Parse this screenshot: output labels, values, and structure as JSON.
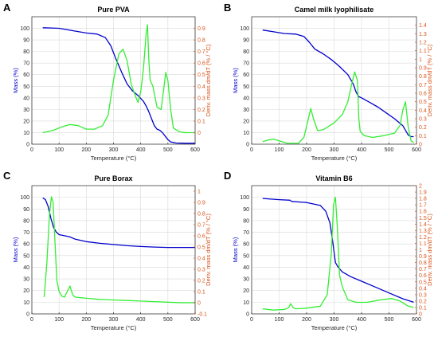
{
  "colors": {
    "mass": "#0000cc",
    "deriv": "#33ee33",
    "deriv_axis": "#D95319",
    "grid": "#d9d9d9"
  },
  "chart_data": [
    {
      "type": "line",
      "letter": "A",
      "title": "Pure PVA",
      "xlabel": "Temperature (°C)",
      "ylabel_left": "Mass (%)",
      "ylabel_right": "Deriv. mass dm/dT (% / °C)",
      "xlim": [
        0,
        600
      ],
      "xticks": [
        0,
        100,
        200,
        300,
        400,
        500,
        600
      ],
      "ylim_left": [
        0,
        110
      ],
      "yticks_left": [
        0,
        10,
        20,
        30,
        40,
        50,
        60,
        70,
        80,
        90,
        100
      ],
      "ylim_right": [
        -0.1,
        1.0
      ],
      "yticks_right": [
        0,
        0.1,
        0.2,
        0.3,
        0.4,
        0.5,
        0.6,
        0.7,
        0.8,
        0.9
      ],
      "grid": true,
      "series": [
        {
          "axis": "left",
          "color": "mass",
          "x": [
            40,
            100,
            150,
            200,
            240,
            270,
            290,
            310,
            330,
            350,
            370,
            390,
            410,
            420,
            430,
            440,
            450,
            460,
            470,
            480,
            490,
            500,
            510,
            530,
            560,
            600
          ],
          "y": [
            100.5,
            100,
            98,
            96,
            95,
            92,
            85,
            73,
            62,
            52,
            46,
            42,
            37,
            33,
            28,
            22,
            16,
            13,
            12,
            10,
            7,
            4,
            2,
            1,
            0.8,
            0.8
          ]
        },
        {
          "axis": "right",
          "color": "deriv",
          "x": [
            40,
            80,
            110,
            140,
            170,
            200,
            230,
            260,
            280,
            300,
            320,
            335,
            350,
            365,
            380,
            390,
            400,
            410,
            420,
            425,
            430,
            435,
            445,
            460,
            475,
            485,
            492,
            500,
            510,
            520,
            540,
            560,
            600
          ],
          "y": [
            0.0,
            0.02,
            0.05,
            0.07,
            0.06,
            0.03,
            0.03,
            0.06,
            0.15,
            0.45,
            0.68,
            0.72,
            0.62,
            0.42,
            0.32,
            0.26,
            0.35,
            0.55,
            0.85,
            0.93,
            0.62,
            0.45,
            0.4,
            0.22,
            0.2,
            0.38,
            0.52,
            0.45,
            0.2,
            0.04,
            0.01,
            0.0,
            0.0
          ]
        }
      ]
    },
    {
      "type": "line",
      "letter": "B",
      "title": "Camel milk lyophilisate",
      "xlabel": "Temperature (°C)",
      "ylabel_left": "Mass (%)",
      "ylabel_right": "Deriv. mass dm/dT (% / °C)",
      "xlim": [
        0,
        600
      ],
      "xticks": [
        0,
        100,
        200,
        300,
        400,
        500,
        600
      ],
      "ylim_left": [
        0,
        110
      ],
      "yticks_left": [
        0,
        10,
        20,
        30,
        40,
        50,
        60,
        70,
        80,
        90,
        100
      ],
      "ylim_right": [
        0,
        1.5
      ],
      "yticks_right": [
        0,
        0.1,
        0.2,
        0.3,
        0.4,
        0.5,
        0.6,
        0.7,
        0.8,
        0.9,
        1,
        1.1,
        1.2,
        1.3,
        1.4
      ],
      "grid": true,
      "series": [
        {
          "axis": "left",
          "color": "mass",
          "x": [
            40,
            80,
            120,
            160,
            190,
            210,
            230,
            260,
            290,
            320,
            350,
            370,
            380,
            390,
            400,
            430,
            460,
            490,
            520,
            550,
            570,
            580,
            590
          ],
          "y": [
            98.5,
            97,
            95.5,
            95,
            93,
            88,
            82,
            78,
            73,
            67,
            60,
            52,
            45,
            41,
            40,
            36,
            32,
            27,
            22,
            16,
            8,
            6.5,
            6.5
          ]
        },
        {
          "axis": "right",
          "color": "deriv",
          "x": [
            40,
            60,
            80,
            100,
            130,
            170,
            190,
            205,
            215,
            225,
            240,
            260,
            300,
            330,
            350,
            365,
            375,
            385,
            390,
            395,
            410,
            440,
            480,
            520,
            540,
            550,
            560,
            570,
            580,
            590
          ],
          "y": [
            0.03,
            0.05,
            0.06,
            0.04,
            0.01,
            0.01,
            0.08,
            0.28,
            0.42,
            0.3,
            0.16,
            0.17,
            0.25,
            0.35,
            0.5,
            0.72,
            0.85,
            0.75,
            0.3,
            0.15,
            0.1,
            0.08,
            0.1,
            0.13,
            0.22,
            0.4,
            0.5,
            0.2,
            0.04,
            0.02
          ]
        }
      ]
    },
    {
      "type": "line",
      "letter": "C",
      "title": "Pure Borax",
      "xlabel": "Temperature (°C)",
      "ylabel_left": "Mass (%)",
      "ylabel_right": "Deriv. mass dm/dT (% / °C)",
      "xlim": [
        0,
        600
      ],
      "xticks": [
        0,
        100,
        200,
        300,
        400,
        500,
        600
      ],
      "ylim_left": [
        0,
        110
      ],
      "yticks_left": [
        0,
        10,
        20,
        30,
        40,
        50,
        60,
        70,
        80,
        90,
        100
      ],
      "ylim_right": [
        -0.1,
        1.05
      ],
      "yticks_right": [
        -0.1,
        0,
        0.1,
        0.2,
        0.3,
        0.4,
        0.5,
        0.6,
        0.7,
        0.8,
        0.9,
        1
      ],
      "grid": true,
      "series": [
        {
          "axis": "left",
          "color": "mass",
          "x": [
            40,
            50,
            60,
            70,
            80,
            90,
            100,
            120,
            140,
            160,
            200,
            250,
            300,
            350,
            400,
            450,
            500,
            550,
            600
          ],
          "y": [
            99.5,
            98,
            92,
            82,
            74,
            70,
            68,
            67,
            66,
            64,
            62,
            60.5,
            59.5,
            58.5,
            57.8,
            57.3,
            57,
            57,
            57
          ]
        },
        {
          "axis": "right",
          "color": "deriv",
          "x": [
            45,
            55,
            65,
            72,
            78,
            85,
            92,
            100,
            110,
            120,
            130,
            140,
            150,
            160,
            180,
            200,
            250,
            300,
            350,
            400,
            450,
            500,
            550,
            600
          ],
          "y": [
            0.05,
            0.35,
            0.8,
            0.95,
            0.9,
            0.55,
            0.2,
            0.1,
            0.06,
            0.05,
            0.1,
            0.15,
            0.07,
            0.05,
            0.045,
            0.04,
            0.03,
            0.025,
            0.02,
            0.015,
            0.01,
            0.005,
            0.0,
            0.0
          ]
        }
      ]
    },
    {
      "type": "line",
      "letter": "D",
      "title": "Vitamin B6",
      "xlabel": "Temperature (°C)",
      "ylabel_left": "Mass (%)",
      "ylabel_right": "Deriv. mass dm/dT (% / °C)",
      "xlim": [
        0,
        600
      ],
      "xticks": [
        0,
        100,
        200,
        300,
        400,
        500,
        600
      ],
      "ylim_left": [
        0,
        110
      ],
      "yticks_left": [
        0,
        10,
        20,
        30,
        40,
        50,
        60,
        70,
        80,
        90,
        100
      ],
      "ylim_right": [
        0,
        2.0
      ],
      "yticks_right": [
        0,
        0.1,
        0.2,
        0.3,
        0.4,
        0.5,
        0.6,
        0.7,
        0.8,
        0.9,
        1,
        1.1,
        1.2,
        1.3,
        1.4,
        1.5,
        1.6,
        1.7,
        1.8,
        1.9,
        2
      ],
      "grid": true,
      "series": [
        {
          "axis": "left",
          "color": "mass",
          "x": [
            40,
            100,
            140,
            145,
            200,
            250,
            270,
            285,
            295,
            305,
            315,
            330,
            360,
            400,
            450,
            500,
            550,
            590
          ],
          "y": [
            99,
            98,
            97.5,
            96.5,
            95.5,
            93,
            88,
            78,
            62,
            44,
            40,
            36,
            32,
            28,
            23,
            18,
            13,
            10
          ]
        },
        {
          "axis": "right",
          "color": "deriv",
          "x": [
            40,
            80,
            120,
            135,
            142,
            150,
            160,
            200,
            250,
            275,
            290,
            298,
            305,
            312,
            320,
            330,
            350,
            380,
            420,
            470,
            510,
            540,
            570,
            590
          ],
          "y": [
            0.08,
            0.06,
            0.07,
            0.1,
            0.16,
            0.1,
            0.08,
            0.09,
            0.12,
            0.3,
            0.95,
            1.7,
            1.82,
            1.35,
            0.6,
            0.42,
            0.22,
            0.18,
            0.18,
            0.22,
            0.24,
            0.2,
            0.12,
            0.1
          ]
        }
      ]
    }
  ]
}
